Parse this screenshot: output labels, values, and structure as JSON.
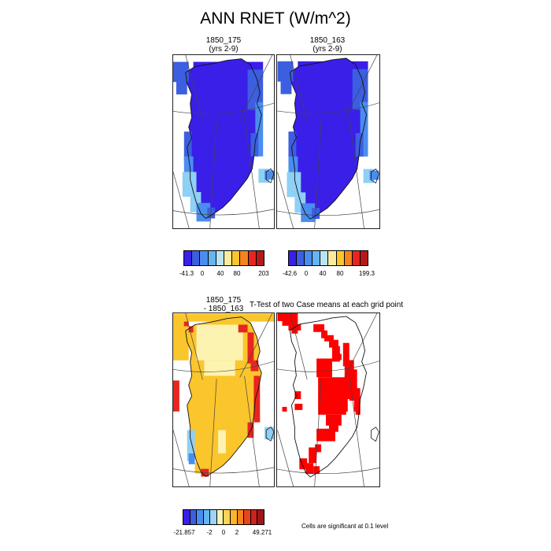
{
  "figure_title": "ANN RNET (W/m^2)",
  "panels": {
    "case1": {
      "title_line1": "1850_175",
      "title_line2": "(yrs 2-9)"
    },
    "case2": {
      "title_line1": "1850_163",
      "title_line2": "(yrs 2-9)"
    },
    "diff": {
      "title_line1": "1850_175",
      "title_line2": "- 1850_163"
    },
    "ttest": {
      "title": "T-Test of two Case means at each grid point",
      "note": "Cells are significant at 0.1 level"
    }
  },
  "colorbars": {
    "case1": {
      "colors": [
        "#3a1fe8",
        "#3c5ee0",
        "#4a8df0",
        "#63b6f0",
        "#b9e4f5",
        "#fbeb9c",
        "#fbc52c",
        "#f4841c",
        "#e8251f",
        "#b8181a"
      ],
      "labels": [
        "-41.3",
        "0",
        "40",
        "80",
        "203"
      ]
    },
    "case2": {
      "colors": [
        "#3a1fe8",
        "#3c5ee0",
        "#4a8df0",
        "#63b6f0",
        "#b9e4f5",
        "#fbeb9c",
        "#fbc52c",
        "#f4841c",
        "#e8251f",
        "#b8181a"
      ],
      "labels": [
        "-42.6",
        "0",
        "40",
        "80",
        "199.3"
      ]
    },
    "diff": {
      "colors": [
        "#3a1fe8",
        "#3c5ee0",
        "#4a8df0",
        "#63b6f0",
        "#9ed4f5",
        "#fdf3b0",
        "#fbd45a",
        "#fbb42c",
        "#f4841c",
        "#e8451f",
        "#d0201d",
        "#a01517"
      ],
      "labels": [
        "-21.857",
        "-2",
        "0",
        "2",
        "49.271"
      ]
    }
  },
  "map_colors": {
    "deep_blue": "#3a1fe8",
    "mid_blue": "#3c5ee0",
    "light_blue": "#4a8df0",
    "sky_blue": "#8fd0f5",
    "pale_yellow": "#fdf3b0",
    "yellow": "#fbc52c",
    "red": "#e8251f",
    "significant_red": "#ff0000"
  }
}
